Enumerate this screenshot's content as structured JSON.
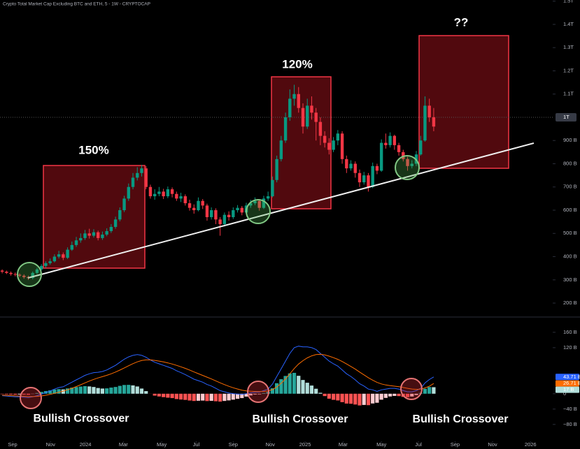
{
  "chart_data": [
    {
      "type": "candlestick",
      "title": "Crypto Total Market Cap Excluding BTC and ETH, 5 - 1W - CRYPTOCAP",
      "up_color": "#089981",
      "down_color": "#f23645",
      "xlim": [
        -0.5,
        126.3
      ],
      "ylim": [
        143,
        1505
      ],
      "yticks": [
        {
          "value": 200,
          "label": "200 B"
        },
        {
          "value": 300,
          "label": "300 B"
        },
        {
          "value": 400,
          "label": "400 B"
        },
        {
          "value": 500,
          "label": "500 B"
        },
        {
          "value": 600,
          "label": "600 B"
        },
        {
          "value": 700,
          "label": "700 B"
        },
        {
          "value": 800,
          "label": "800 B"
        },
        {
          "value": 900,
          "label": "900 B"
        },
        {
          "value": 1100,
          "label": "1.1T"
        },
        {
          "value": 1200,
          "label": "1.2T"
        },
        {
          "value": 1300,
          "label": "1.3T"
        },
        {
          "value": 1400,
          "label": "1.4T"
        },
        {
          "value": 1500,
          "label": "1.5T"
        }
      ],
      "price_label": {
        "value": 1000,
        "label": "1T"
      },
      "annotations": [
        "150%",
        "120%",
        "??"
      ],
      "open": [
        340,
        335,
        330,
        325,
        322,
        318,
        312,
        308,
        330,
        345,
        360,
        372,
        380,
        400,
        410,
        395,
        430,
        450,
        470,
        480,
        500,
        490,
        505,
        480,
        495,
        510,
        528,
        560,
        600,
        650,
        700,
        740,
        760,
        780,
        700,
        660,
        670,
        680,
        660,
        690,
        670,
        650,
        660,
        630,
        610,
        600,
        640,
        620,
        570,
        600,
        560,
        540,
        580,
        570,
        600,
        610,
        590,
        620,
        630,
        640,
        610,
        650,
        660,
        730,
        820,
        900,
        1000,
        1080,
        1100,
        1040,
        960,
        1050,
        1020,
        980,
        920,
        890,
        860,
        900,
        930,
        820,
        780,
        800,
        760,
        720,
        750,
        700,
        790,
        770,
        890,
        880,
        920,
        880,
        850,
        820,
        790,
        800,
        840,
        900,
        1050,
        1000
      ],
      "high": [
        345,
        340,
        336,
        332,
        328,
        324,
        318,
        336,
        352,
        368,
        380,
        392,
        410,
        425,
        418,
        440,
        465,
        485,
        500,
        515,
        520,
        518,
        512,
        508,
        522,
        540,
        572,
        612,
        662,
        715,
        760,
        785,
        795,
        790,
        710,
        690,
        700,
        692,
        702,
        698,
        680,
        675,
        668,
        645,
        625,
        655,
        648,
        628,
        612,
        608,
        570,
        590,
        595,
        612,
        622,
        618,
        632,
        645,
        655,
        648,
        662,
        680,
        745,
        835,
        920,
        1020,
        1120,
        1140,
        1130,
        1060,
        1080,
        1090,
        1040,
        1000,
        940,
        910,
        915,
        945,
        940,
        835,
        815,
        810,
        775,
        765,
        760,
        805,
        800,
        905,
        930,
        935,
        925,
        890,
        860,
        830,
        815,
        855,
        920,
        1090,
        1080,
        1040
      ],
      "low": [
        328,
        325,
        318,
        315,
        312,
        305,
        300,
        302,
        325,
        340,
        352,
        365,
        375,
        392,
        385,
        390,
        425,
        442,
        460,
        472,
        478,
        482,
        470,
        472,
        488,
        502,
        520,
        552,
        592,
        640,
        690,
        728,
        745,
        690,
        650,
        645,
        660,
        648,
        652,
        655,
        640,
        635,
        620,
        598,
        585,
        595,
        605,
        555,
        560,
        540,
        490,
        530,
        555,
        562,
        590,
        578,
        584,
        610,
        622,
        598,
        605,
        640,
        655,
        720,
        810,
        890,
        985,
        1050,
        1020,
        930,
        950,
        990,
        900,
        880,
        870,
        840,
        850,
        880,
        800,
        760,
        770,
        740,
        700,
        710,
        680,
        695,
        755,
        765,
        865,
        870,
        860,
        835,
        810,
        770,
        780,
        790,
        835,
        895,
        980,
        940
      ],
      "close": [
        335,
        330,
        325,
        322,
        318,
        312,
        308,
        330,
        345,
        360,
        372,
        380,
        400,
        410,
        395,
        430,
        450,
        470,
        480,
        500,
        490,
        505,
        480,
        495,
        510,
        528,
        560,
        600,
        650,
        700,
        740,
        760,
        780,
        700,
        660,
        670,
        680,
        660,
        690,
        670,
        650,
        660,
        630,
        610,
        600,
        640,
        620,
        570,
        600,
        560,
        540,
        580,
        570,
        600,
        610,
        590,
        620,
        630,
        640,
        610,
        650,
        660,
        730,
        820,
        900,
        1000,
        1080,
        1100,
        1040,
        960,
        1050,
        1020,
        980,
        920,
        890,
        860,
        900,
        930,
        820,
        780,
        800,
        760,
        720,
        750,
        700,
        790,
        770,
        890,
        880,
        920,
        880,
        850,
        820,
        790,
        800,
        840,
        900,
        1050,
        1000,
        960
      ]
    },
    {
      "type": "macd",
      "xlim": [
        -0.5,
        126.3
      ],
      "ylim": [
        -124,
        198
      ],
      "yticks": [
        {
          "value": -80,
          "label": "−80 B"
        },
        {
          "value": -40,
          "label": "−40 B"
        },
        0,
        {
          "value": 120,
          "label": "120 B"
        },
        {
          "value": 160,
          "label": "160 B"
        }
      ],
      "xticks": [
        {
          "value": 2.4,
          "label": "Sep"
        },
        {
          "value": 11.1,
          "label": "Nov"
        },
        {
          "value": 19.1,
          "label": "2024"
        },
        {
          "value": 27.8,
          "label": "Mar"
        },
        {
          "value": 36.6,
          "label": "May"
        },
        {
          "value": 44.5,
          "label": "Jul"
        },
        {
          "value": 53,
          "label": "Sep"
        },
        {
          "value": 61.5,
          "label": "Nov"
        },
        {
          "value": 69.5,
          "label": "2025"
        },
        {
          "value": 78.2,
          "label": "Mar"
        },
        {
          "value": 87,
          "label": "May"
        },
        {
          "value": 95.5,
          "label": "Jul"
        },
        {
          "value": 103.9,
          "label": "Sep"
        },
        {
          "value": 112.5,
          "label": "Nov"
        },
        {
          "value": 121.2,
          "label": "2026"
        }
      ],
      "annotations": [
        "Bullish Crossover",
        "Bullish Crossover",
        "Bullish Crossover"
      ],
      "hist_colors": [
        "#26a69a",
        "#b2dfdb",
        "#ff5252",
        "#ffcdd2"
      ],
      "histogram": {
        "values": [
          -1,
          -1.6,
          -2.1,
          -2.5,
          -2,
          -2.4,
          -2.7,
          -0.6,
          1.9,
          4.7,
          6.9,
          8.7,
          11,
          12,
          11.2,
          13.8,
          15.8,
          17.4,
          18.7,
          19.8,
          19,
          17.6,
          14.9,
          13.5,
          14,
          16,
          17.6,
          20.5,
          22.8,
          23.1,
          21.7,
          18.9,
          13.5,
          6.8,
          -0.2,
          -4.9,
          -7.1,
          -8.9,
          -10.3,
          -11.4,
          -13.9,
          -15.1,
          -16.1,
          -17.7,
          -18.9,
          -18.3,
          -17.8,
          -19.1,
          -18.5,
          -19.6,
          -20.5,
          -18.8,
          -17.4,
          -15.5,
          -13.2,
          -11.4,
          -7.5,
          -4.4,
          -1.9,
          -1.5,
          2,
          4.8,
          14.2,
          27.4,
          37.9,
          46.3,
          53,
          54.4,
          46.7,
          35.8,
          28.6,
          21.3,
          13,
          2.4,
          -6.1,
          -12.9,
          -15.9,
          -17.5,
          -22,
          -25.6,
          -26.1,
          -28.1,
          -30.5,
          -29.2,
          -29.8,
          -25.4,
          -23.5,
          -15.6,
          -10.9,
          -7.1,
          -5.7,
          -6.2,
          -8.2,
          -9,
          -7.2,
          -3.4,
          2.1,
          12.9,
          17.5,
          17
        ],
        "last_label": "17 B",
        "color": "#b2dfdb"
      },
      "series": [
        {
          "color": "#2962ff",
          "last_label": "43.71 B",
          "values": [
            -5,
            -6,
            -7,
            -8,
            -8,
            -9,
            -10,
            -8,
            -5,
            -1,
            3,
            7,
            12,
            16,
            18,
            24,
            30,
            36,
            42,
            48,
            52,
            55,
            56,
            58,
            62,
            68,
            74,
            82,
            90,
            96,
            100,
            102,
            100,
            95,
            88,
            82,
            78,
            74,
            70,
            66,
            60,
            55,
            50,
            44,
            38,
            34,
            30,
            24,
            20,
            14,
            8,
            5,
            2,
            0,
            -1,
            -2,
            0,
            2,
            4,
            4,
            8,
            12,
            25,
            45,
            65,
            85,
            105,
            120,
            124,
            122,
            122,
            120,
            115,
            105,
            95,
            85,
            78,
            72,
            62,
            52,
            45,
            36,
            26,
            20,
            12,
            10,
            6,
            10,
            12,
            14,
            14,
            12,
            8,
            5,
            5,
            8,
            14,
            28,
            37,
            43.71
          ]
        },
        {
          "color": "#ff6d00",
          "last_label": "26.71 B",
          "values": [
            -4,
            -4.4,
            -4.9,
            -5.5,
            -6,
            -6.6,
            -7.3,
            -7.4,
            -6.9,
            -5.7,
            -3.9,
            -1.7,
            1,
            4,
            6.8,
            10.2,
            14.2,
            18.6,
            23.3,
            28.2,
            33,
            37.4,
            41.1,
            44.5,
            48,
            52,
            56.4,
            61.5,
            67.2,
            72.9,
            78.3,
            83.1,
            86.5,
            88.2,
            88.2,
            86.9,
            85.1,
            82.9,
            80.3,
            77.4,
            73.9,
            70.1,
            66.1,
            61.7,
            56.9,
            52.3,
            47.8,
            43.1,
            38.5,
            33.6,
            28.5,
            23.8,
            19.4,
            15.5,
            12.2,
            9.4,
            7.5,
            6.4,
            5.9,
            5.5,
            6,
            7.2,
            10.8,
            17.6,
            27.1,
            38.7,
            52,
            65.6,
            77.3,
            86.2,
            93.4,
            98.7,
            102,
            102.6,
            101.1,
            97.9,
            93.9,
            89.5,
            84,
            77.6,
            71.1,
            64.1,
            56.5,
            49.2,
            41.8,
            35.4,
            29.5,
            25.6,
            22.9,
            21.1,
            19.7,
            18.2,
            16.2,
            14,
            12.2,
            11.4,
            11.9,
            15.1,
            19.5,
            26.71
          ]
        }
      ]
    }
  ]
}
